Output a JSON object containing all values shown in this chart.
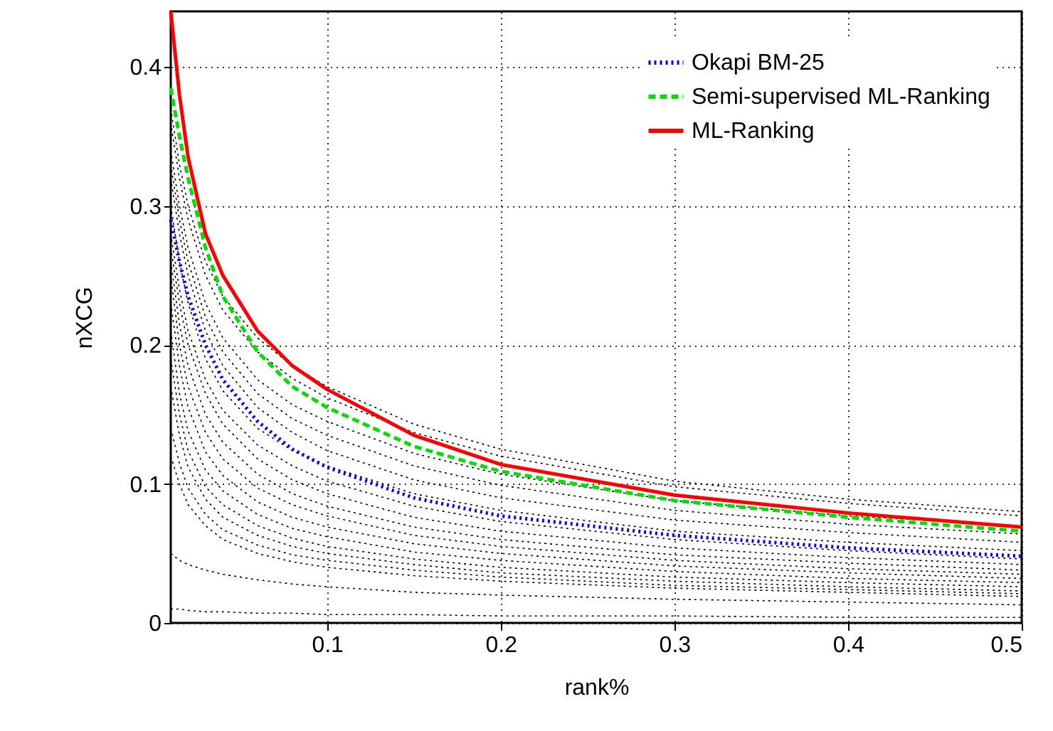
{
  "chart_data": {
    "type": "line",
    "xlabel": "rank%",
    "ylabel": "nXCG",
    "x": [
      0.01,
      0.015,
      0.02,
      0.03,
      0.04,
      0.06,
      0.08,
      0.1,
      0.15,
      0.2,
      0.3,
      0.4,
      0.5
    ],
    "xlim": [
      0.01,
      0.5
    ],
    "xticks": [
      0.1,
      0.2,
      0.3,
      0.4,
      0.5
    ],
    "ylim": [
      0,
      0.44
    ],
    "yticks": [
      0,
      0.1,
      0.2,
      0.3,
      0.4
    ],
    "grid": true,
    "legend": "top right",
    "marker": "none",
    "series": [
      {
        "color": "#000000",
        "line_style": "dotted",
        "values": [
          0.37,
          0.33,
          0.3,
          0.26,
          0.235,
          0.205,
          0.185,
          0.17,
          0.143,
          0.125,
          0.102,
          0.089,
          0.08
        ]
      },
      {
        "color": "#000000",
        "line_style": "dotted",
        "values": [
          0.36,
          0.32,
          0.29,
          0.25,
          0.225,
          0.195,
          0.176,
          0.162,
          0.137,
          0.12,
          0.098,
          0.086,
          0.077
        ]
      },
      {
        "color": "#000000",
        "line_style": "dotted",
        "values": [
          0.34,
          0.3,
          0.27,
          0.23,
          0.205,
          0.175,
          0.157,
          0.145,
          0.122,
          0.107,
          0.088,
          0.077,
          0.07
        ]
      },
      {
        "color": "#000000",
        "line_style": "dotted",
        "values": [
          0.33,
          0.29,
          0.26,
          0.22,
          0.195,
          0.165,
          0.147,
          0.135,
          0.113,
          0.099,
          0.081,
          0.071,
          0.064
        ]
      },
      {
        "color": "#000000",
        "line_style": "dotted",
        "values": [
          0.32,
          0.28,
          0.25,
          0.21,
          0.185,
          0.155,
          0.137,
          0.124,
          0.103,
          0.09,
          0.074,
          0.065,
          0.058
        ]
      },
      {
        "color": "#000000",
        "line_style": "dotted",
        "values": [
          0.3,
          0.26,
          0.23,
          0.19,
          0.167,
          0.14,
          0.124,
          0.113,
          0.093,
          0.081,
          0.066,
          0.058,
          0.052
        ]
      },
      {
        "color": "#000000",
        "line_style": "dotted",
        "values": [
          0.28,
          0.24,
          0.21,
          0.175,
          0.153,
          0.128,
          0.113,
          0.102,
          0.084,
          0.073,
          0.06,
          0.052,
          0.046
        ]
      },
      {
        "color": "#000000",
        "line_style": "dotted",
        "values": [
          0.27,
          0.23,
          0.2,
          0.165,
          0.143,
          0.118,
          0.103,
          0.093,
          0.076,
          0.066,
          0.054,
          0.047,
          0.042
        ]
      },
      {
        "color": "#000000",
        "line_style": "dotted",
        "values": [
          0.26,
          0.215,
          0.185,
          0.15,
          0.13,
          0.107,
          0.093,
          0.084,
          0.069,
          0.06,
          0.049,
          0.043,
          0.038
        ]
      },
      {
        "color": "#000000",
        "line_style": "dotted",
        "values": [
          0.25,
          0.2,
          0.17,
          0.137,
          0.118,
          0.097,
          0.085,
          0.077,
          0.063,
          0.055,
          0.045,
          0.039,
          0.035
        ]
      },
      {
        "color": "#000000",
        "line_style": "dotted",
        "values": [
          0.23,
          0.185,
          0.155,
          0.123,
          0.106,
          0.087,
          0.076,
          0.069,
          0.057,
          0.05,
          0.041,
          0.036,
          0.032
        ]
      },
      {
        "color": "#000000",
        "line_style": "dotted",
        "values": [
          0.21,
          0.165,
          0.138,
          0.11,
          0.095,
          0.078,
          0.068,
          0.062,
          0.051,
          0.045,
          0.037,
          0.032,
          0.029
        ]
      },
      {
        "color": "#000000",
        "line_style": "dotted",
        "values": [
          0.19,
          0.15,
          0.124,
          0.098,
          0.085,
          0.07,
          0.061,
          0.055,
          0.046,
          0.04,
          0.033,
          0.029,
          0.026
        ]
      },
      {
        "color": "#000000",
        "line_style": "dotted",
        "values": [
          0.17,
          0.135,
          0.112,
          0.089,
          0.076,
          0.063,
          0.055,
          0.05,
          0.042,
          0.036,
          0.03,
          0.026,
          0.023
        ]
      },
      {
        "color": "#000000",
        "line_style": "dotted",
        "values": [
          0.14,
          0.115,
          0.097,
          0.078,
          0.067,
          0.056,
          0.049,
          0.045,
          0.038,
          0.033,
          0.027,
          0.024,
          0.021
        ]
      },
      {
        "color": "#000000",
        "line_style": "dotted",
        "values": [
          0.12,
          0.1,
          0.085,
          0.07,
          0.06,
          0.05,
          0.044,
          0.04,
          0.034,
          0.03,
          0.025,
          0.022,
          0.019
        ]
      },
      {
        "color": "#000000",
        "line_style": "dotted",
        "values": [
          0.05,
          0.045,
          0.042,
          0.038,
          0.035,
          0.031,
          0.028,
          0.026,
          0.022,
          0.02,
          0.017,
          0.015,
          0.013
        ]
      },
      {
        "color": "#000000",
        "line_style": "dotted",
        "values": [
          0.01,
          0.01,
          0.009,
          0.008,
          0.008,
          0.007,
          0.007,
          0.006,
          0.006,
          0.005,
          0.005,
          0.004,
          0.004
        ]
      },
      {
        "name": "Okapi BM-25",
        "color": "#0000ff",
        "line_style": "dotted",
        "values": [
          0.29,
          0.26,
          0.235,
          0.2,
          0.175,
          0.145,
          0.125,
          0.112,
          0.09,
          0.077,
          0.063,
          0.054,
          0.048
        ]
      },
      {
        "name": "Semi-supervised ML-Ranking",
        "color": "#00e000",
        "line_style": "dashed",
        "values": [
          0.385,
          0.35,
          0.32,
          0.27,
          0.235,
          0.195,
          0.17,
          0.155,
          0.127,
          0.109,
          0.088,
          0.076,
          0.066
        ]
      },
      {
        "name": "ML-Ranking",
        "color": "#ff0000",
        "line_style": "solid",
        "values": [
          0.44,
          0.38,
          0.335,
          0.28,
          0.25,
          0.21,
          0.185,
          0.168,
          0.135,
          0.114,
          0.092,
          0.079,
          0.069
        ]
      }
    ]
  }
}
